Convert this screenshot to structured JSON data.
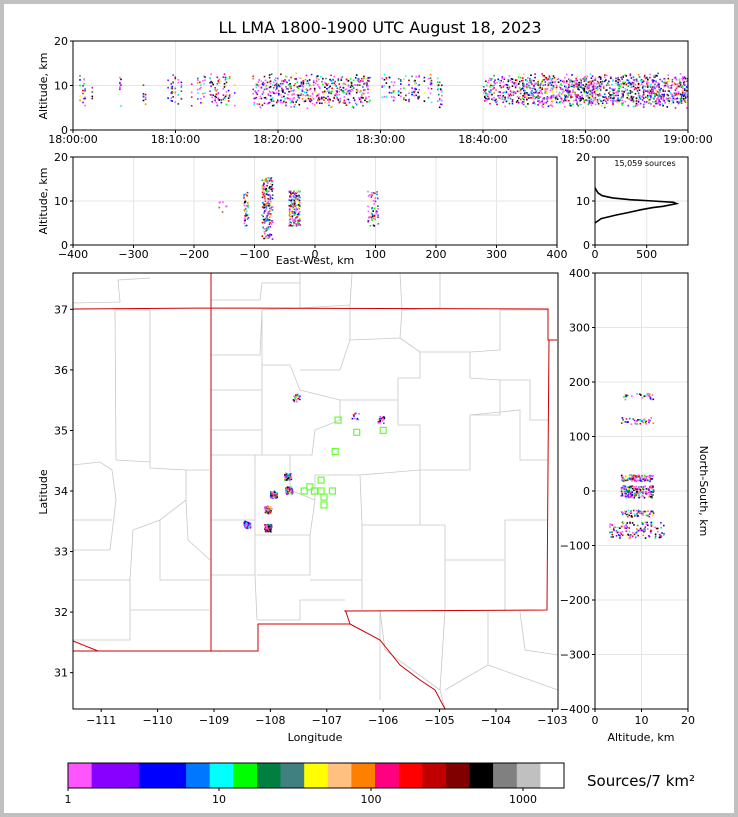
{
  "title": "LL LMA 1800-1900 UTC August 18, 2023",
  "colors": {
    "frame": "#c0c0c0",
    "state_border": "#cc0000",
    "county_line": "#c8c8c8",
    "grid": "#e6e6e6",
    "station_marker": "#66ff33",
    "altitude_profile": "#000000"
  },
  "colorbar": {
    "colors": [
      "#ff55ff",
      "#8800ff",
      "#8800ff",
      "#0000ff",
      "#0000ff",
      "#0077ff",
      "#00ffff",
      "#00ff00",
      "#008040",
      "#408080",
      "#ffff00",
      "#ffc080",
      "#ff8000",
      "#ff0080",
      "#ff0000",
      "#c00000",
      "#800000",
      "#000000",
      "#808080",
      "#c0c0c0",
      "#ffffff"
    ],
    "tick_labels": [
      "1",
      "10",
      "100",
      "1000"
    ],
    "unit_label": "Sources/7 km²"
  },
  "chart_data": [
    {
      "id": "time-height",
      "type": "scatter",
      "ylabel": "Altitude, km",
      "ylim": [
        0,
        20
      ],
      "y_ticks": [
        "0",
        "10",
        "20"
      ],
      "x_ticks": [
        "18:00:00",
        "18:10:00",
        "18:20:00",
        "18:30:00",
        "18:40:00",
        "18:50:00",
        "19:00:00"
      ],
      "xlim_minutes": [
        0,
        60
      ],
      "activity_periods_minutes": [
        [
          0.5,
          2.0
        ],
        [
          4.5,
          5.0
        ],
        [
          6.5,
          7.0
        ],
        [
          9,
          16
        ],
        [
          17.5,
          29
        ],
        [
          30,
          36
        ],
        [
          40,
          60
        ]
      ],
      "typical_altitude_km": [
        6,
        12
      ]
    },
    {
      "id": "ew-height",
      "type": "scatter",
      "xlabel": "East-West, km",
      "ylabel": "Altitude, km",
      "xlim": [
        -400,
        400
      ],
      "ylim": [
        0,
        20
      ],
      "x_ticks": [
        "−400",
        "−300",
        "−200",
        "−100",
        "0",
        "100",
        "200",
        "300",
        "400"
      ],
      "y_ticks": [
        "0",
        "10",
        "20"
      ],
      "clusters_km": [
        -115,
        -80,
        -35,
        95
      ]
    },
    {
      "id": "altitude-histogram",
      "type": "line",
      "annotation": "15,059 sources",
      "x_ticks": [
        "0",
        "500"
      ],
      "y_ticks": [
        "0",
        "10",
        "20"
      ],
      "xlim": [
        0,
        900
      ],
      "ylim": [
        0,
        20
      ],
      "profile": [
        [
          0,
          5
        ],
        [
          60,
          6
        ],
        [
          200,
          6.8
        ],
        [
          330,
          7.4
        ],
        [
          440,
          8.0
        ],
        [
          560,
          8.5
        ],
        [
          660,
          8.8
        ],
        [
          790,
          9.4
        ],
        [
          760,
          9.7
        ],
        [
          560,
          10.0
        ],
        [
          340,
          10.3
        ],
        [
          170,
          10.7
        ],
        [
          70,
          11.2
        ],
        [
          30,
          11.8
        ],
        [
          12,
          12.5
        ],
        [
          0,
          13
        ]
      ]
    },
    {
      "id": "plan-view",
      "type": "scatter",
      "xlabel": "Longitude",
      "ylabel": "Latitude",
      "xlim": [
        -111.5,
        -102.9
      ],
      "ylim": [
        30.4,
        37.6
      ],
      "x_ticks": [
        "−111",
        "−110",
        "−109",
        "−108",
        "−107",
        "−106",
        "−105",
        "−104",
        "−103"
      ],
      "y_ticks": [
        "31",
        "32",
        "33",
        "34",
        "35",
        "36",
        "37"
      ],
      "stations": [
        [
          -106.8,
          35.17
        ],
        [
          -106.47,
          34.97
        ],
        [
          -106.0,
          35.0
        ],
        [
          -106.85,
          34.65
        ],
        [
          -107.3,
          34.07
        ],
        [
          -107.1,
          34.18
        ],
        [
          -107.4,
          34.0
        ],
        [
          -107.22,
          34.0
        ],
        [
          -107.1,
          34.0
        ],
        [
          -107.05,
          33.9
        ],
        [
          -107.05,
          33.77
        ],
        [
          -106.9,
          34.0
        ]
      ],
      "source_clusters": [
        [
          -107.55,
          35.55,
          3
        ],
        [
          -106.05,
          35.18,
          4
        ],
        [
          -107.7,
          34.25,
          8
        ],
        [
          -107.68,
          34.02,
          10
        ],
        [
          -107.95,
          33.95,
          8
        ],
        [
          -108.05,
          33.7,
          14
        ],
        [
          -108.05,
          33.4,
          22
        ],
        [
          -108.42,
          33.45,
          12
        ],
        [
          -106.5,
          35.25,
          2
        ]
      ]
    },
    {
      "id": "ns-height",
      "type": "scatter",
      "xlabel": "Altitude, km",
      "ylabel": "North-South, km",
      "xlim": [
        0,
        20
      ],
      "ylim": [
        -400,
        400
      ],
      "x_ticks": [
        "0",
        "10",
        "20"
      ],
      "y_ticks": [
        "400",
        "300",
        "200",
        "100",
        "0",
        "−100",
        "−200",
        "−300",
        "−400"
      ],
      "clusters_km": [
        -70,
        -40,
        -5,
        5,
        25,
        130,
        175
      ]
    }
  ]
}
